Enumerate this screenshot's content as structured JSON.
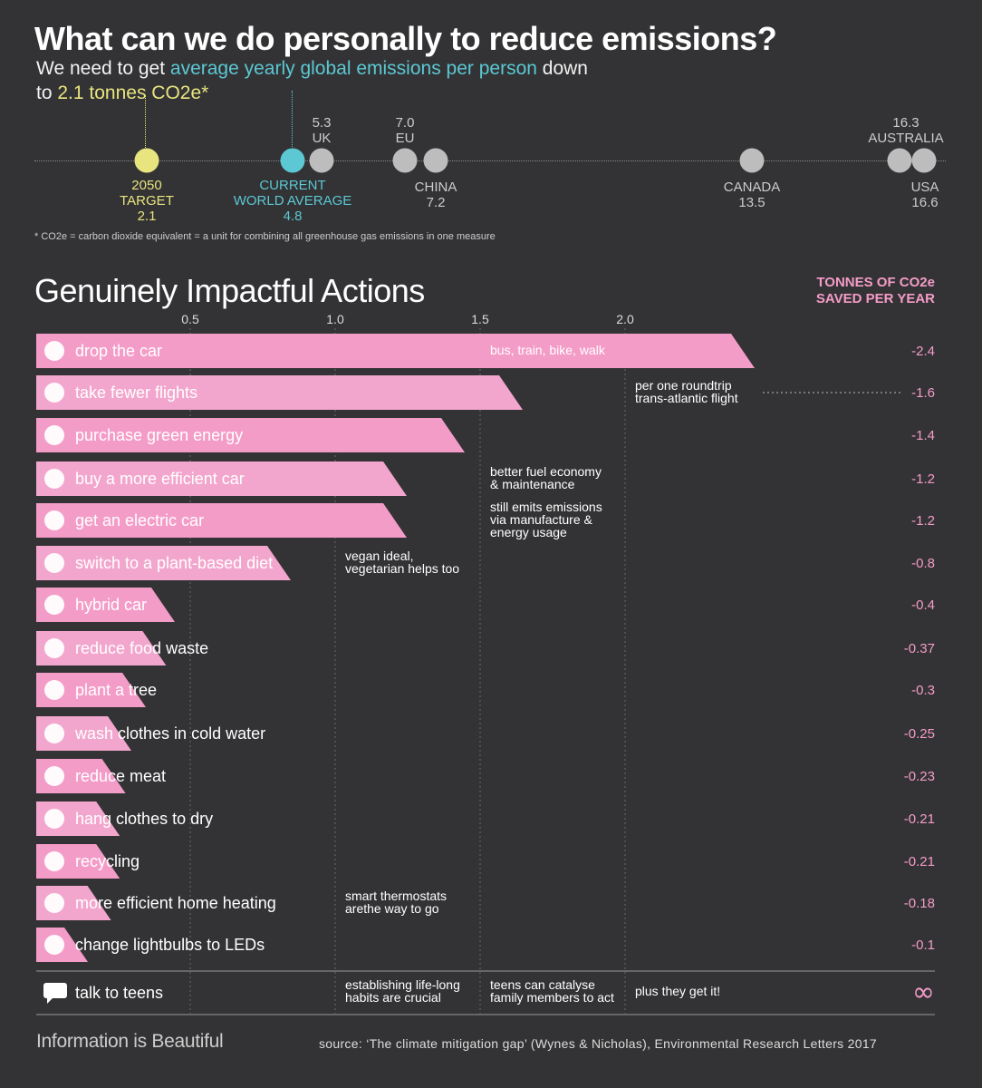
{
  "header": {
    "title": "What can we do personally to reduce emissions?",
    "subtitle_pre": "We need to get ",
    "subtitle_highlight": "average yearly global emissions per person",
    "subtitle_post": " down",
    "subtitle_line2_pre": "to ",
    "subtitle_line2_highlight": "2.1 tonnes CO2e*"
  },
  "scale": {
    "points": [
      {
        "name": "2050 TARGET",
        "line1": "2050",
        "line2": "TARGET",
        "value": "2.1",
        "kind": "target",
        "pos": 2.1
      },
      {
        "name": "CURRENT WORLD AVERAGE",
        "line1": "CURRENT",
        "line2": "WORLD AVERAGE",
        "value": "4.8",
        "kind": "avg",
        "pos": 4.8
      },
      {
        "name": "UK",
        "line1": "UK",
        "value": "5.3",
        "kind": "country-above",
        "pos": 5.3
      },
      {
        "name": "EU",
        "line1": "EU",
        "value": "7.0",
        "kind": "country-above",
        "pos": 7.0
      },
      {
        "name": "CHINA",
        "line1": "CHINA",
        "value": "7.2",
        "kind": "country-below",
        "pos": 7.2
      },
      {
        "name": "CANADA",
        "line1": "CANADA",
        "value": "13.5",
        "kind": "country-below",
        "pos": 13.5
      },
      {
        "name": "AUSTRALIA",
        "line1": "AUSTRALIA",
        "value": "16.3",
        "kind": "country-above",
        "pos": 16.3
      },
      {
        "name": "USA",
        "line1": "USA",
        "value": "16.6",
        "kind": "country-below",
        "pos": 16.6
      }
    ],
    "footnote": "* CO2e = carbon dioxide equivalent = a unit for combining all greenhouse gas emissions in one measure"
  },
  "section": {
    "title": "Genuinely Impactful Actions",
    "unit_line1": "TONNES OF CO2e",
    "unit_line2": "SAVED PER YEAR"
  },
  "chart_data": {
    "type": "bar",
    "orientation": "horizontal",
    "x_ticks": [
      "0.5",
      "1.0",
      "1.5",
      "2.0"
    ],
    "xlim": [
      0,
      2.5
    ],
    "grid": true,
    "bar_color": "#f49cc8",
    "categories": [
      "drop the car",
      "take fewer flights",
      "purchase green energy",
      "buy a more efficient car",
      "get an electric car",
      "switch to a plant-based diet",
      "hybrid car",
      "reduce food waste",
      "plant a tree",
      "wash clothes in cold water",
      "reduce meat",
      "hang clothes to dry",
      "recycling",
      "more efficient home heating",
      "change lightbulbs to LEDs"
    ],
    "values": [
      2.4,
      1.6,
      1.4,
      1.2,
      1.2,
      0.8,
      0.4,
      0.37,
      0.3,
      0.25,
      0.23,
      0.21,
      0.21,
      0.18,
      0.1
    ],
    "value_labels": [
      "-2.4",
      "-1.6",
      "-1.4",
      "-1.2",
      "-1.2",
      "-0.8",
      "-0.4",
      "-0.37",
      "-0.3",
      "-0.25",
      "-0.23",
      "-0.21",
      "-0.21",
      "-0.18",
      "-0.1"
    ],
    "icons": [
      "car-icon",
      "plane-icon",
      "sun-icon",
      "car-icon",
      "car-icon",
      "apple-icon",
      "car-icon",
      "bag-icon",
      "tree-icon",
      "washing-machine-icon",
      "cow-icon",
      "shirt-icon",
      "recycle-icon",
      "house-icon",
      "lightbulb-icon"
    ],
    "annotations": [
      {
        "row": 0,
        "text": [
          "bus, train, bike, walk"
        ],
        "col": 1.5
      },
      {
        "row": 1,
        "text": [
          "per one roundtrip",
          "trans-atlantic flight"
        ],
        "col": 2.0
      },
      {
        "row": 3,
        "text": [
          "better fuel economy",
          "& maintenance"
        ],
        "col": 1.5
      },
      {
        "row": 4,
        "text": [
          "still emits emissions",
          "via  manufacture &",
          "energy usage"
        ],
        "col": 1.5
      },
      {
        "row": 5,
        "text": [
          "vegan ideal,",
          "vegetarian helps too"
        ],
        "col": 1.0
      },
      {
        "row": 13,
        "text": [
          "smart thermostats",
          "arethe way to go"
        ],
        "col": 1.0
      }
    ],
    "extra_row": {
      "label": "talk to teens",
      "icon": "speech-bubble-icon",
      "value_label": "∞",
      "notes": [
        {
          "text": [
            "establishing life-long",
            "habits are crucial"
          ],
          "col": 1.0
        },
        {
          "text": [
            "teens can catalyse",
            "family members to act"
          ],
          "col": 1.5
        },
        {
          "text": [
            "plus they get it!"
          ],
          "col": 2.0
        }
      ]
    }
  },
  "footer": {
    "brand": "Information is Beautiful",
    "source": "source: ‘The climate mitigation gap’ (Wynes & Nicholas), Environmental Research Letters 2017"
  }
}
